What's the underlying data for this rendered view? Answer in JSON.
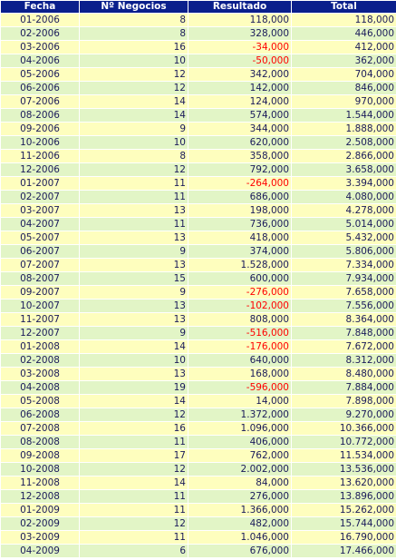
{
  "headers": [
    "Fecha",
    "Nº Negocios",
    "Resultado",
    "Total"
  ],
  "colors": {
    "header_bg": "#0a1f8c",
    "row_odd": "#fefebe",
    "row_even": "#e2f5c6",
    "negative": "#ff0000",
    "text": "#1a1a5a"
  },
  "rows": [
    {
      "fecha": "01-2006",
      "negocios": "8",
      "resultado": "118,000",
      "total": "118,000"
    },
    {
      "fecha": "02-2006",
      "negocios": "8",
      "resultado": "328,000",
      "total": "446,000"
    },
    {
      "fecha": "03-2006",
      "negocios": "16",
      "resultado": "-34,000",
      "total": "412,000"
    },
    {
      "fecha": "04-2006",
      "negocios": "10",
      "resultado": "-50,000",
      "total": "362,000"
    },
    {
      "fecha": "05-2006",
      "negocios": "12",
      "resultado": "342,000",
      "total": "704,000"
    },
    {
      "fecha": "06-2006",
      "negocios": "12",
      "resultado": "142,000",
      "total": "846,000"
    },
    {
      "fecha": "07-2006",
      "negocios": "14",
      "resultado": "124,000",
      "total": "970,000"
    },
    {
      "fecha": "08-2006",
      "negocios": "14",
      "resultado": "574,000",
      "total": "1.544,000"
    },
    {
      "fecha": "09-2006",
      "negocios": "9",
      "resultado": "344,000",
      "total": "1.888,000"
    },
    {
      "fecha": "10-2006",
      "negocios": "10",
      "resultado": "620,000",
      "total": "2.508,000"
    },
    {
      "fecha": "11-2006",
      "negocios": "8",
      "resultado": "358,000",
      "total": "2.866,000"
    },
    {
      "fecha": "12-2006",
      "negocios": "12",
      "resultado": "792,000",
      "total": "3.658,000"
    },
    {
      "fecha": "01-2007",
      "negocios": "11",
      "resultado": "-264,000",
      "total": "3.394,000"
    },
    {
      "fecha": "02-2007",
      "negocios": "11",
      "resultado": "686,000",
      "total": "4.080,000"
    },
    {
      "fecha": "03-2007",
      "negocios": "13",
      "resultado": "198,000",
      "total": "4.278,000"
    },
    {
      "fecha": "04-2007",
      "negocios": "11",
      "resultado": "736,000",
      "total": "5.014,000"
    },
    {
      "fecha": "05-2007",
      "negocios": "13",
      "resultado": "418,000",
      "total": "5.432,000"
    },
    {
      "fecha": "06-2007",
      "negocios": "9",
      "resultado": "374,000",
      "total": "5.806,000"
    },
    {
      "fecha": "07-2007",
      "negocios": "13",
      "resultado": "1.528,000",
      "total": "7.334,000"
    },
    {
      "fecha": "08-2007",
      "negocios": "15",
      "resultado": "600,000",
      "total": "7.934,000"
    },
    {
      "fecha": "09-2007",
      "negocios": "9",
      "resultado": "-276,000",
      "total": "7.658,000"
    },
    {
      "fecha": "10-2007",
      "negocios": "13",
      "resultado": "-102,000",
      "total": "7.556,000"
    },
    {
      "fecha": "11-2007",
      "negocios": "13",
      "resultado": "808,000",
      "total": "8.364,000"
    },
    {
      "fecha": "12-2007",
      "negocios": "9",
      "resultado": "-516,000",
      "total": "7.848,000"
    },
    {
      "fecha": "01-2008",
      "negocios": "14",
      "resultado": "-176,000",
      "total": "7.672,000"
    },
    {
      "fecha": "02-2008",
      "negocios": "10",
      "resultado": "640,000",
      "total": "8.312,000"
    },
    {
      "fecha": "03-2008",
      "negocios": "13",
      "resultado": "168,000",
      "total": "8.480,000"
    },
    {
      "fecha": "04-2008",
      "negocios": "19",
      "resultado": "-596,000",
      "total": "7.884,000"
    },
    {
      "fecha": "05-2008",
      "negocios": "14",
      "resultado": "14,000",
      "total": "7.898,000"
    },
    {
      "fecha": "06-2008",
      "negocios": "12",
      "resultado": "1.372,000",
      "total": "9.270,000"
    },
    {
      "fecha": "07-2008",
      "negocios": "16",
      "resultado": "1.096,000",
      "total": "10.366,000"
    },
    {
      "fecha": "08-2008",
      "negocios": "11",
      "resultado": "406,000",
      "total": "10.772,000"
    },
    {
      "fecha": "09-2008",
      "negocios": "17",
      "resultado": "762,000",
      "total": "11.534,000"
    },
    {
      "fecha": "10-2008",
      "negocios": "12",
      "resultado": "2.002,000",
      "total": "13.536,000"
    },
    {
      "fecha": "11-2008",
      "negocios": "14",
      "resultado": "84,000",
      "total": "13.620,000"
    },
    {
      "fecha": "12-2008",
      "negocios": "11",
      "resultado": "276,000",
      "total": "13.896,000"
    },
    {
      "fecha": "01-2009",
      "negocios": "11",
      "resultado": "1.366,000",
      "total": "15.262,000"
    },
    {
      "fecha": "02-2009",
      "negocios": "12",
      "resultado": "482,000",
      "total": "15.744,000"
    },
    {
      "fecha": "03-2009",
      "negocios": "11",
      "resultado": "1.046,000",
      "total": "16.790,000"
    },
    {
      "fecha": "04-2009",
      "negocios": "6",
      "resultado": "676,000",
      "total": "17.466,000"
    }
  ]
}
